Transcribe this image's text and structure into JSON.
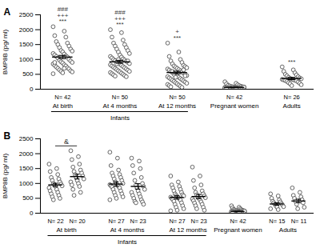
{
  "chart_data": [
    {
      "type": "scatter",
      "title": "A",
      "ylabel": "BMP8B (pg/ ml)",
      "ylim": [
        0,
        2500
      ],
      "yticks": [
        0,
        500,
        1000,
        1500,
        2000,
        2500
      ],
      "color": "#555555",
      "marker": "circle",
      "group_labels": [
        {
          "label": "Infants",
          "categories": [
            "At birth",
            "At 4 months",
            "At 12 months"
          ]
        }
      ],
      "groups": [
        {
          "category": "At birth",
          "annotations": [
            "###",
            "+++",
            "***"
          ],
          "subgroups": [
            {
              "n_label": "N= 42",
              "mean": 1080,
              "sem": 55,
              "values": [
                2100,
                1950,
                1800,
                1750,
                1600,
                1550,
                1500,
                1450,
                1400,
                1350,
                1300,
                1280,
                1250,
                1200,
                1180,
                1150,
                1120,
                1100,
                1080,
                1050,
                1000,
                980,
                950,
                920,
                900,
                880,
                850,
                820,
                800,
                780,
                750,
                720,
                700,
                680,
                650,
                620,
                600,
                580,
                550,
                520,
                700,
                900
              ]
            }
          ]
        },
        {
          "category": "At 4 months",
          "annotations": [
            "###",
            "+++",
            "***"
          ],
          "subgroups": [
            {
              "n_label": "N= 50",
              "mean": 920,
              "sem": 50,
              "values": [
                2000,
                1900,
                1750,
                1650,
                1550,
                1500,
                1450,
                1400,
                1350,
                1300,
                1250,
                1200,
                1150,
                1100,
                1080,
                1050,
                1020,
                1000,
                980,
                960,
                940,
                920,
                900,
                880,
                860,
                840,
                820,
                800,
                780,
                760,
                740,
                720,
                700,
                680,
                660,
                640,
                620,
                600,
                580,
                560,
                540,
                520,
                500,
                480,
                460,
                440,
                420,
                850,
                950,
                1000
              ]
            }
          ]
        },
        {
          "category": "At 12 months",
          "annotations": [
            "+",
            "***"
          ],
          "subgroups": [
            {
              "n_label": "N= 50",
              "mean": 560,
              "sem": 45,
              "values": [
                1550,
                1250,
                1100,
                1000,
                950,
                900,
                850,
                800,
                780,
                760,
                740,
                720,
                700,
                680,
                660,
                640,
                620,
                600,
                580,
                560,
                540,
                520,
                500,
                480,
                460,
                440,
                420,
                400,
                380,
                360,
                340,
                320,
                300,
                280,
                260,
                240,
                220,
                200,
                180,
                160,
                140,
                120,
                100,
                80,
                60,
                600,
                650,
                500,
                450,
                400
              ]
            }
          ]
        },
        {
          "category": "Pregnant women",
          "annotations": [],
          "subgroups": [
            {
              "n_label": "N= 42",
              "mean": 60,
              "sem": 10,
              "values": [
                250,
                200,
                180,
                150,
                130,
                120,
                110,
                100,
                90,
                85,
                80,
                75,
                70,
                65,
                60,
                55,
                50,
                48,
                45,
                42,
                40,
                38,
                35,
                32,
                30,
                28,
                25,
                22,
                20,
                18,
                15,
                12,
                10,
                8,
                5,
                3,
                60,
                70,
                50,
                40,
                30,
                20
              ]
            }
          ]
        },
        {
          "category": "Adults",
          "annotations": [
            "***"
          ],
          "subgroups": [
            {
              "n_label": "N= 26",
              "mean": 360,
              "sem": 35,
              "values": [
                750,
                650,
                600,
                550,
                500,
                480,
                450,
                420,
                400,
                380,
                360,
                350,
                340,
                330,
                320,
                310,
                300,
                290,
                280,
                260,
                240,
                220,
                200,
                180,
                150,
                120
              ]
            }
          ]
        }
      ]
    },
    {
      "type": "scatter",
      "title": "B",
      "ylabel": "BMP8B (pg/ ml)",
      "ylim": [
        0,
        2500
      ],
      "yticks": [
        0,
        500,
        1000,
        1500,
        2000,
        2500
      ],
      "color": "#555555",
      "marker": "circle",
      "group_labels": [
        {
          "label": "Infants",
          "categories": [
            "At birth",
            "At 4 months",
            "At 12 months"
          ]
        }
      ],
      "groups": [
        {
          "category": "At birth",
          "bracket": "&",
          "subgroups": [
            {
              "n_label": "N= 22",
              "mean": 950,
              "sem": 55,
              "values": [
                1650,
                1500,
                1400,
                1300,
                1200,
                1150,
                1100,
                1050,
                1000,
                980,
                950,
                920,
                900,
                850,
                800,
                750,
                700,
                650,
                600,
                550,
                500,
                450
              ]
            },
            {
              "n_label": "N= 20",
              "mean": 1230,
              "sem": 80,
              "values": [
                2100,
                1900,
                1800,
                1650,
                1550,
                1450,
                1400,
                1350,
                1300,
                1250,
                1200,
                1150,
                1100,
                1050,
                1000,
                950,
                900,
                800,
                700,
                600
              ]
            }
          ]
        },
        {
          "category": "At 4 months",
          "subgroups": [
            {
              "n_label": "N= 27",
              "mean": 980,
              "sem": 75,
              "values": [
                2050,
                1850,
                1600,
                1450,
                1350,
                1300,
                1250,
                1200,
                1150,
                1100,
                1050,
                1000,
                980,
                960,
                940,
                920,
                900,
                880,
                850,
                800,
                750,
                700,
                650,
                600,
                550,
                500,
                450
              ]
            },
            {
              "n_label": "N= 23",
              "mean": 900,
              "sem": 90,
              "values": [
                1850,
                1750,
                1600,
                1500,
                1350,
                1200,
                1100,
                1000,
                950,
                900,
                850,
                800,
                750,
                700,
                650,
                600,
                550,
                500,
                450,
                400,
                380,
                350,
                300
              ]
            }
          ]
        },
        {
          "category": "At 12 months",
          "subgroups": [
            {
              "n_label": "N= 27",
              "mean": 530,
              "sem": 55,
              "values": [
                1250,
                1050,
                950,
                900,
                850,
                800,
                750,
                700,
                650,
                620,
                600,
                580,
                560,
                540,
                520,
                500,
                480,
                460,
                440,
                400,
                350,
                300,
                250,
                200,
                150,
                100,
                80
              ]
            },
            {
              "n_label": "N= 23",
              "mean": 560,
              "sem": 70,
              "values": [
                1550,
                1250,
                1100,
                950,
                850,
                750,
                700,
                650,
                620,
                580,
                550,
                520,
                500,
                480,
                450,
                420,
                380,
                340,
                300,
                250,
                200,
                150,
                100
              ]
            }
          ]
        },
        {
          "category": "Pregnant women",
          "subgroups": [
            {
              "n_label": "N= 42",
              "mean": 60,
              "sem": 10,
              "values": [
                250,
                200,
                180,
                150,
                130,
                120,
                110,
                100,
                90,
                85,
                80,
                75,
                70,
                65,
                60,
                55,
                50,
                48,
                45,
                42,
                40,
                38,
                35,
                32,
                30,
                28,
                25,
                22,
                20,
                18,
                15,
                12,
                10,
                8,
                5,
                3,
                60,
                70,
                50,
                40,
                30,
                20
              ]
            }
          ]
        },
        {
          "category": "Adults",
          "subgroups": [
            {
              "n_label": "N= 15",
              "mean": 310,
              "sem": 40,
              "values": [
                650,
                580,
                500,
                450,
                400,
                380,
                350,
                320,
                300,
                280,
                250,
                220,
                200,
                150,
                120
              ]
            },
            {
              "n_label": "N= 11",
              "mean": 410,
              "sem": 60,
              "values": [
                850,
                700,
                600,
                550,
                500,
                450,
                400,
                350,
                300,
                200,
                150
              ]
            }
          ]
        }
      ]
    }
  ]
}
